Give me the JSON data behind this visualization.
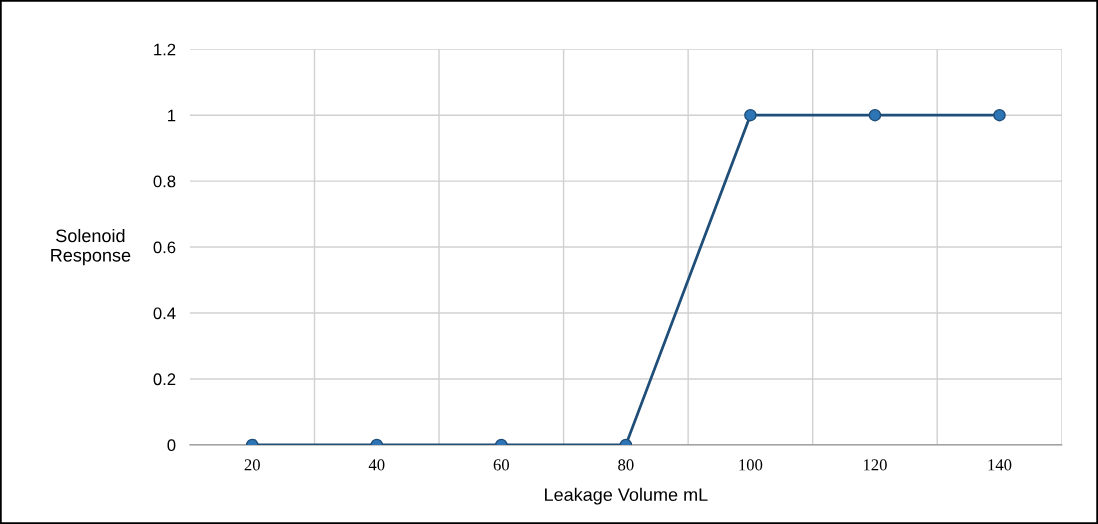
{
  "chart_data": {
    "type": "line",
    "xlabel": "Leakage Volume mL",
    "ylabel": "Solenoid\nResponse",
    "categories": [
      "20",
      "40",
      "60",
      "80",
      "100",
      "120",
      "140"
    ],
    "series": [
      {
        "color": "#1f4e79",
        "values": [
          0,
          0,
          0,
          0,
          1,
          1,
          1
        ]
      }
    ],
    "ylim": [
      0,
      1.2
    ],
    "yticks": [
      0,
      0.2,
      0.4,
      0.6,
      0.8,
      1,
      1.2
    ],
    "grid": true,
    "marker": "circle",
    "line_style": "solid",
    "legend": false
  }
}
